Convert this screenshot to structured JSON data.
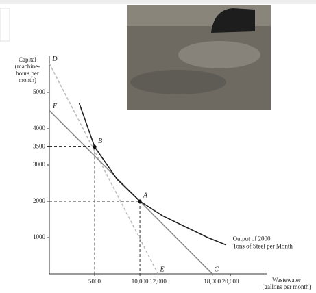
{
  "chart_data": {
    "type": "line",
    "y_label": [
      "Capital",
      "(machine-",
      "hours per",
      "month)"
    ],
    "x_label": [
      "Wastewater",
      "(gallons per month)"
    ],
    "annotation": [
      "Output of 2000",
      "Tons of Steel per Month"
    ],
    "xlim": [
      0,
      24000
    ],
    "ylim": [
      0,
      6000
    ],
    "xticks": [
      5000,
      {
        "value": 10000,
        "label": "10,000"
      },
      {
        "value": 12000,
        "label": "12,000"
      },
      {
        "value": 18000,
        "label": "18,000"
      },
      {
        "value": 20000,
        "label": "20,000"
      }
    ],
    "yticks": [
      1000,
      2000,
      3000,
      3500,
      4000,
      5000
    ],
    "series": [
      {
        "x": [
          0,
          12000
        ],
        "values": [
          5800,
          0
        ],
        "point_labels": [
          "D",
          "E"
        ],
        "color": "#bdbdbd",
        "dashed": true
      },
      {
        "x": [
          0,
          18000
        ],
        "values": [
          4500,
          0
        ],
        "point_labels": [
          "F",
          "C"
        ],
        "color": "#8a8a8a",
        "dashed": false
      },
      {
        "x": [
          3300,
          5000,
          7500,
          10000,
          12500,
          15000,
          17500,
          19500
        ],
        "values": [
          4700,
          3500,
          2600,
          2000,
          1600,
          1300,
          1000,
          800
        ],
        "color": "#222222",
        "dashed": false
      }
    ],
    "points": [
      {
        "label": "A",
        "x": 10000,
        "y": 2000
      },
      {
        "label": "B",
        "x": 5000,
        "y": 3500
      }
    ]
  }
}
